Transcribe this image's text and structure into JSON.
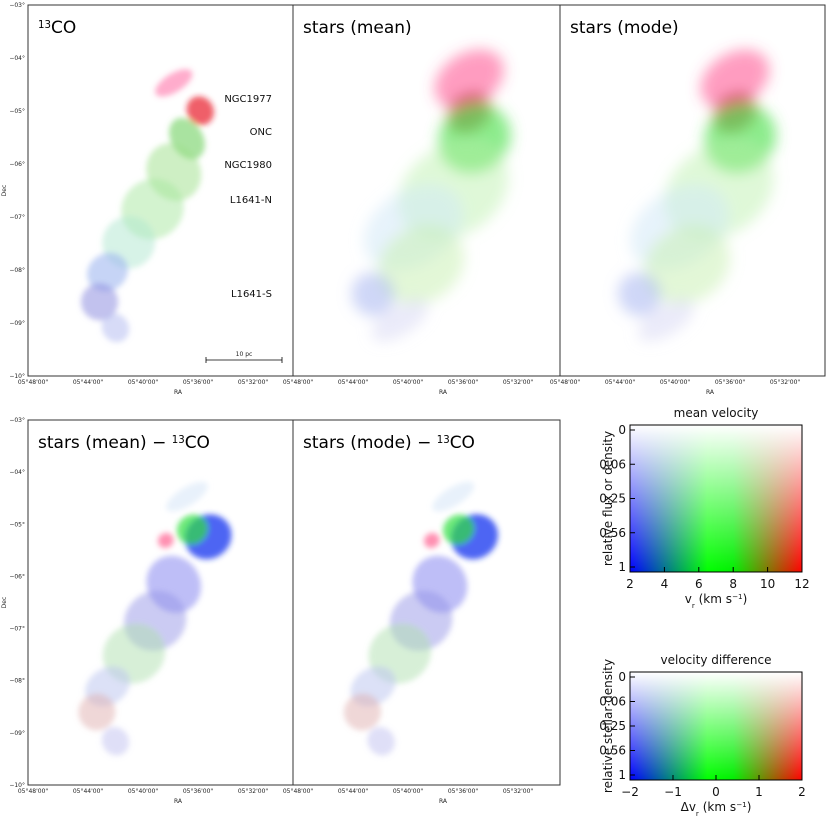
{
  "axes": {
    "dec_ticks": [
      "−03°",
      "−04°",
      "−05°",
      "−06°",
      "−07°",
      "−08°",
      "−09°",
      "−10°"
    ],
    "ra_ticks": [
      "05°48'00\"",
      "05°44'00\"",
      "05°40'00\"",
      "05°36'00\"",
      "05°32'00\""
    ],
    "xlabel": "RA",
    "ylabel": "Dec"
  },
  "panels": [
    {
      "title": [
        {
          "sup": "13"
        },
        {
          "text": "CO"
        }
      ],
      "annotations": [
        "NGC1977",
        "ONC",
        "NGC1980",
        "L1641-N",
        "L1641-S"
      ],
      "scale_bar": "10 pc"
    },
    {
      "title": [
        {
          "text": "stars (mean)"
        }
      ]
    },
    {
      "title": [
        {
          "text": "stars (mode)"
        }
      ]
    },
    {
      "title": [
        {
          "text": "stars (mean) − "
        },
        {
          "sup": "13"
        },
        {
          "text": "CO"
        }
      ]
    },
    {
      "title": [
        {
          "text": "stars (mode) − "
        },
        {
          "sup": "13"
        },
        {
          "text": "CO"
        }
      ]
    }
  ],
  "colorbars": [
    {
      "title": "mean velocity",
      "ylabel": "relative flux or density",
      "yticks": [
        "0",
        "0.06",
        "0.25",
        "0.56",
        "1"
      ],
      "xticks": [
        "2",
        "4",
        "6",
        "8",
        "10",
        "12"
      ],
      "xlabel": [
        {
          "text": "v"
        },
        {
          "sub": "r"
        },
        {
          "text": " (km s"
        },
        {
          "sup": "−1"
        },
        {
          "text": ")"
        }
      ]
    },
    {
      "title": "velocity difference",
      "ylabel": "relative stellar density",
      "yticks": [
        "0",
        "0.06",
        "0.25",
        "0.56",
        "1"
      ],
      "xticks": [
        "−2",
        "−1",
        "0",
        "1",
        "2"
      ],
      "xlabel": [
        {
          "text": "Δv"
        },
        {
          "sub": "r"
        },
        {
          "text": " (km s"
        },
        {
          "sup": "−1"
        },
        {
          "text": ")"
        }
      ]
    }
  ]
}
